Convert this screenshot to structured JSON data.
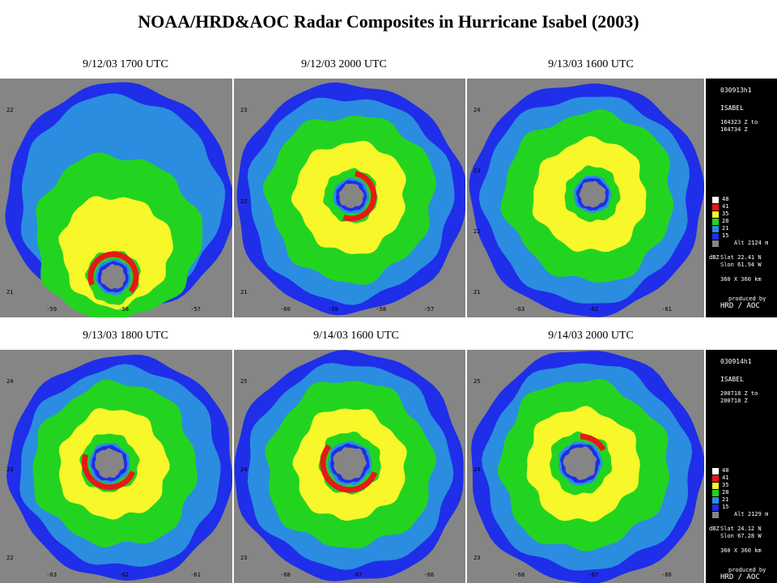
{
  "title": "NOAA/HRD&AOC Radar Composites in Hurricane Isabel (2003)",
  "palette": {
    "background": "#858585",
    "dbz_15": "#1f2ee8",
    "dbz_21": "#2a8de0",
    "dbz_28": "#22d420",
    "dbz_35": "#f7f72a",
    "dbz_41": "#e81818",
    "dbz_48": "#ffffff"
  },
  "panels": [
    {
      "caption": "9/12/03 1700 UTC",
      "yticks": [
        "22",
        "21"
      ],
      "xticks": [
        "-59",
        "-58",
        "-57"
      ]
    },
    {
      "caption": "9/12/03 2000 UTC",
      "yticks": [
        "23",
        "22",
        "21"
      ],
      "xticks": [
        "-60",
        "-59",
        "-58",
        "-57"
      ]
    },
    {
      "caption": "9/13/03 1600 UTC",
      "yticks": [
        "24",
        "23",
        "22",
        "21"
      ],
      "xticks": [
        "-63",
        "-62",
        "-61"
      ]
    },
    {
      "caption": "9/13/03 1800 UTC",
      "yticks": [
        "24",
        "23",
        "22"
      ],
      "xticks": [
        "-63",
        "-62",
        "-61"
      ]
    },
    {
      "caption": "9/14/03 1600 UTC",
      "yticks": [
        "25",
        "24",
        "23"
      ],
      "xticks": [
        "-68",
        "-67",
        "-66"
      ]
    },
    {
      "caption": "9/14/03 2000 UTC",
      "yticks": [
        "25",
        "24",
        "23"
      ],
      "xticks": [
        "-68",
        "-67",
        "-66"
      ]
    }
  ],
  "legends": [
    {
      "code": "030913h1",
      "storm": "ISABEL",
      "time_from": "164323 Z to",
      "time_to": "164734 Z",
      "levels": [
        "48",
        "41",
        "35",
        "28",
        "21",
        "15"
      ],
      "alt_label": "Alt",
      "alt_value": "2124 m",
      "dbz_label": "dBZ",
      "slat": "Slat   22.41 N",
      "slon": "Slon   61.94 W",
      "domain": "360 X 360 km",
      "produced_by": "produced by",
      "producer": "HRD / AOC"
    },
    {
      "code": "030914h1",
      "storm": "ISABEL",
      "time_from": "200718 Z to",
      "time_to": "200718 Z",
      "levels": [
        "48",
        "41",
        "35",
        "28",
        "21",
        "15"
      ],
      "alt_label": "Alt",
      "alt_value": "2129 m",
      "dbz_label": "dBZ",
      "slat": "Slat   24.12 N",
      "slon": "Slon   67.28 W",
      "domain": "360 X 360 km",
      "produced_by": "produced by",
      "producer": "HRD / AOC"
    }
  ]
}
